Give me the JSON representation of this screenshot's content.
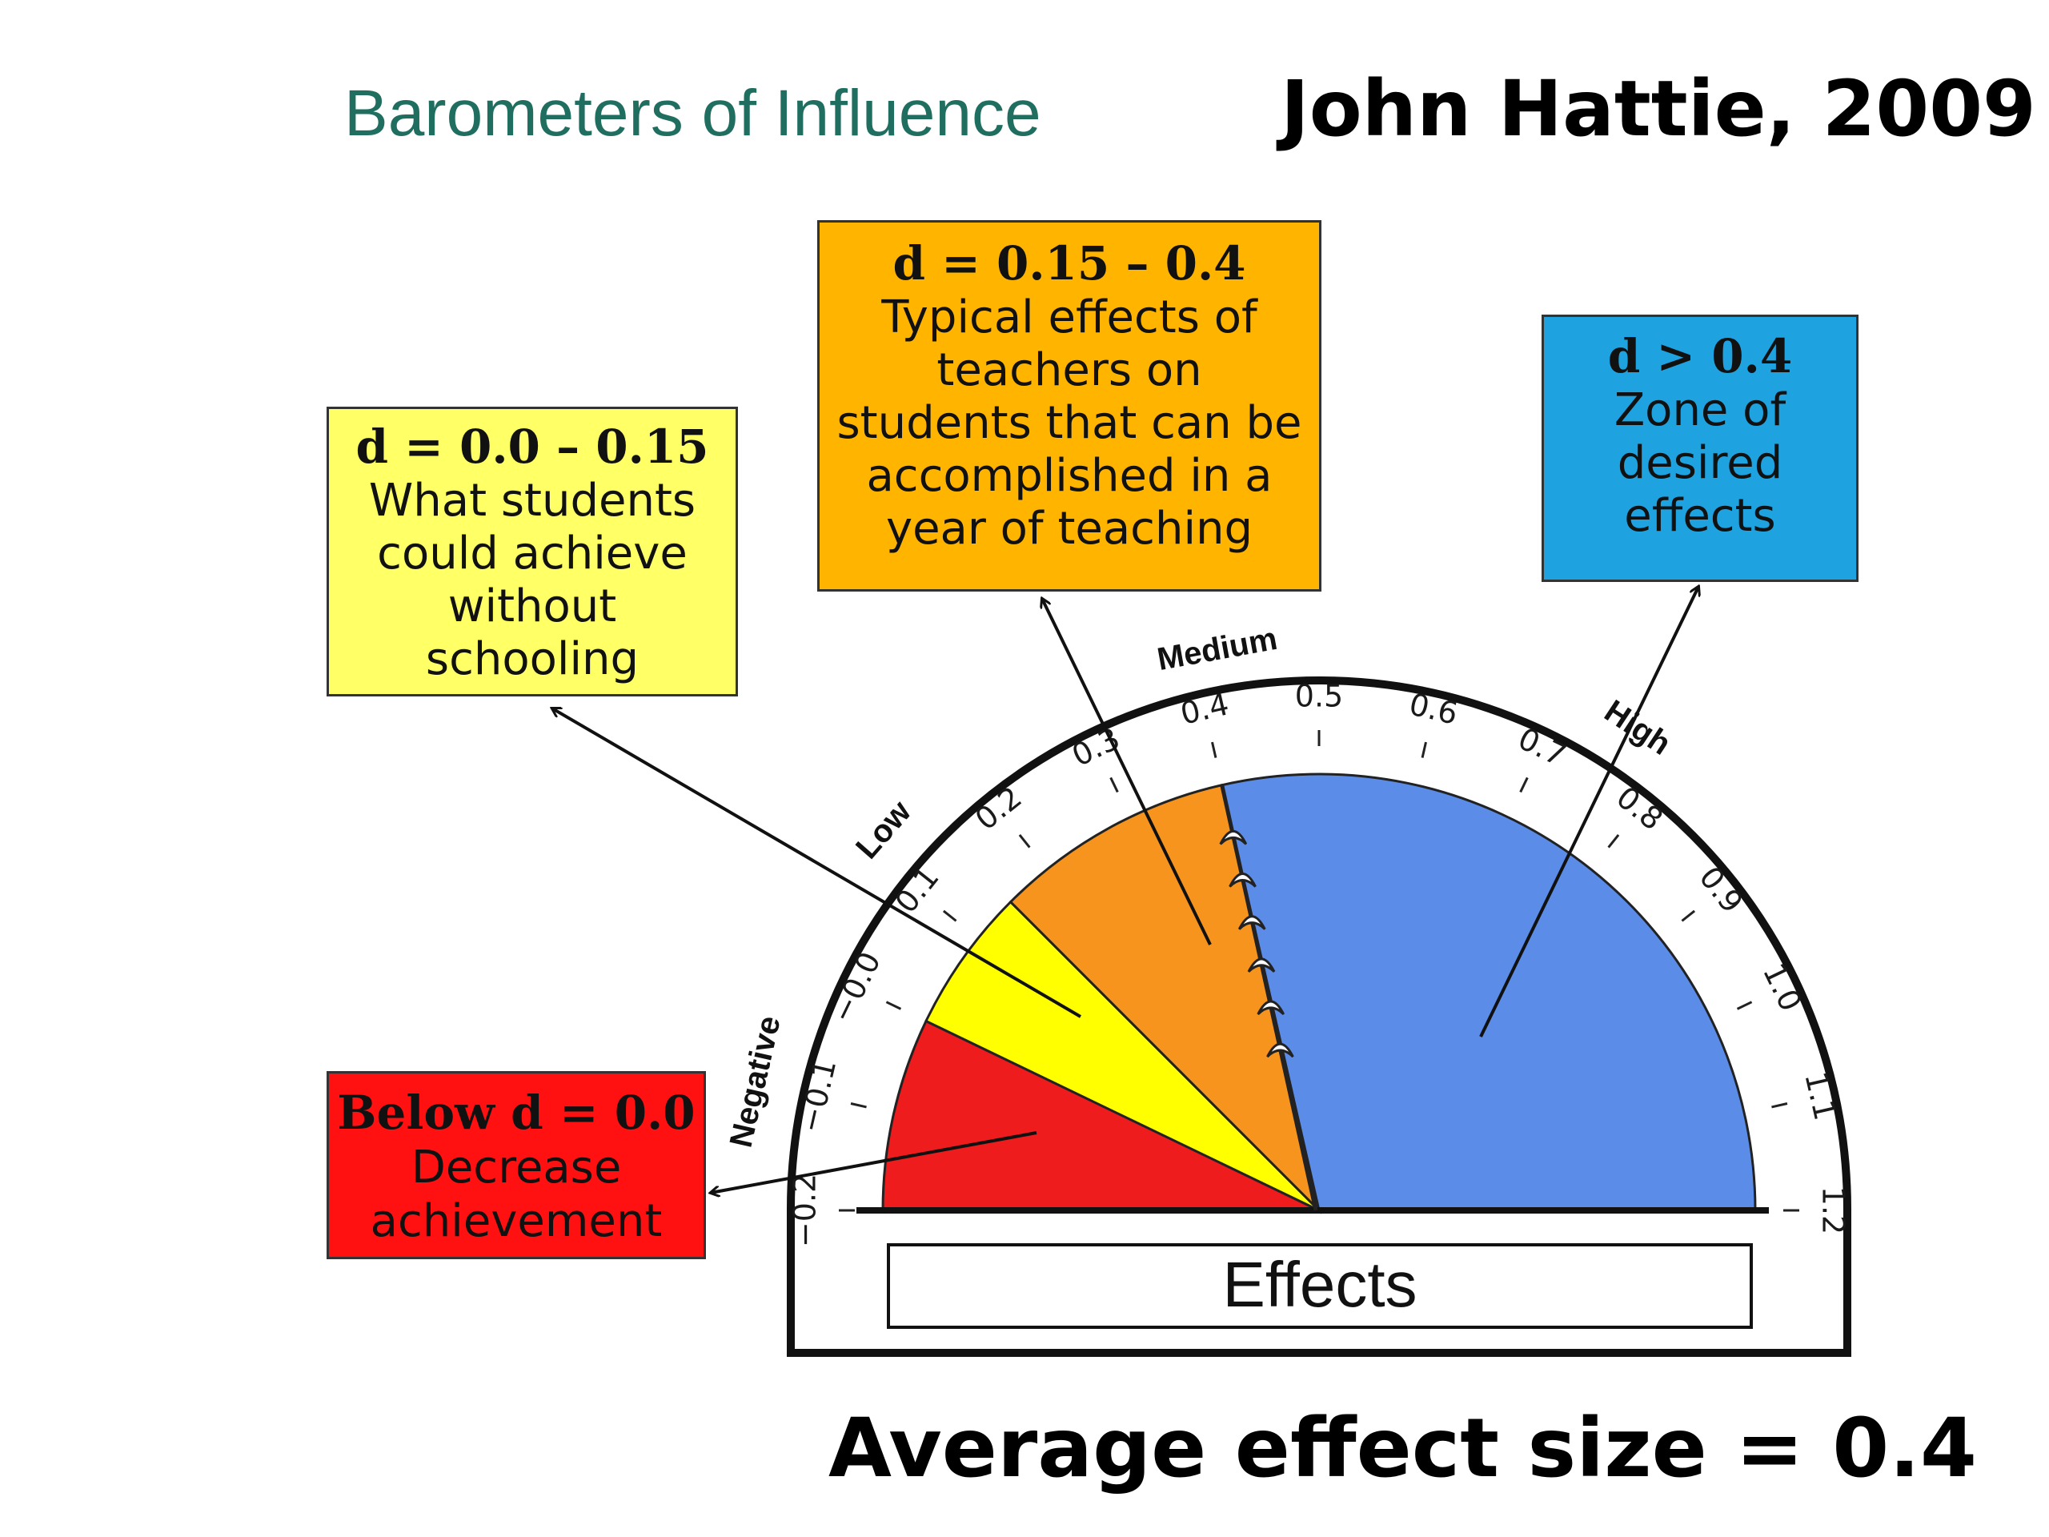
{
  "title": "Barometers of Influence",
  "author": "John Hattie, 2009",
  "footer": "Average effect size = 0.4",
  "boxes": {
    "yellow": {
      "head": "d = 0.0 – 0.15",
      "body": [
        "What students",
        "could achieve",
        "without",
        "schooling"
      ]
    },
    "orange": {
      "head": "d = 0.15 – 0.4",
      "body": [
        "Typical effects of",
        "teachers on",
        "students that can be",
        "accomplished in a",
        "year of teaching"
      ]
    },
    "blue": {
      "head": "d > 0.4",
      "body": [
        "Zone of",
        "desired",
        "effects"
      ]
    },
    "red": {
      "head": "Below d = 0.0",
      "body": "Decrease achievement"
    }
  },
  "gauge": {
    "label": "Effects",
    "zone_labels": {
      "negative": "Negative",
      "low": "Low",
      "medium": "Medium",
      "high": "High"
    },
    "ticks": [
      "−0.2",
      "−0.1",
      "−0.0",
      "0.1",
      "0.2",
      "0.3",
      "0.4",
      "0.5",
      "0.6",
      "0.7",
      "0.8",
      "0.9",
      "1.0",
      "1.1",
      "1.2"
    ],
    "tick_values": [
      -0.2,
      -0.1,
      0.0,
      0.1,
      0.2,
      0.3,
      0.4,
      0.5,
      0.6,
      0.7,
      0.8,
      0.9,
      1.0,
      1.1,
      1.2
    ],
    "range": [
      -0.2,
      1.2
    ],
    "segments": [
      {
        "from": -0.2,
        "to": 0.0,
        "color": "#ee1c1c"
      },
      {
        "from": 0.0,
        "to": 0.15,
        "color": "#ffff00"
      },
      {
        "from": 0.15,
        "to": 0.4,
        "color": "#f7941d"
      },
      {
        "from": 0.4,
        "to": 1.2,
        "color": "#5b8de8"
      }
    ],
    "pointer_value": 0.4
  }
}
